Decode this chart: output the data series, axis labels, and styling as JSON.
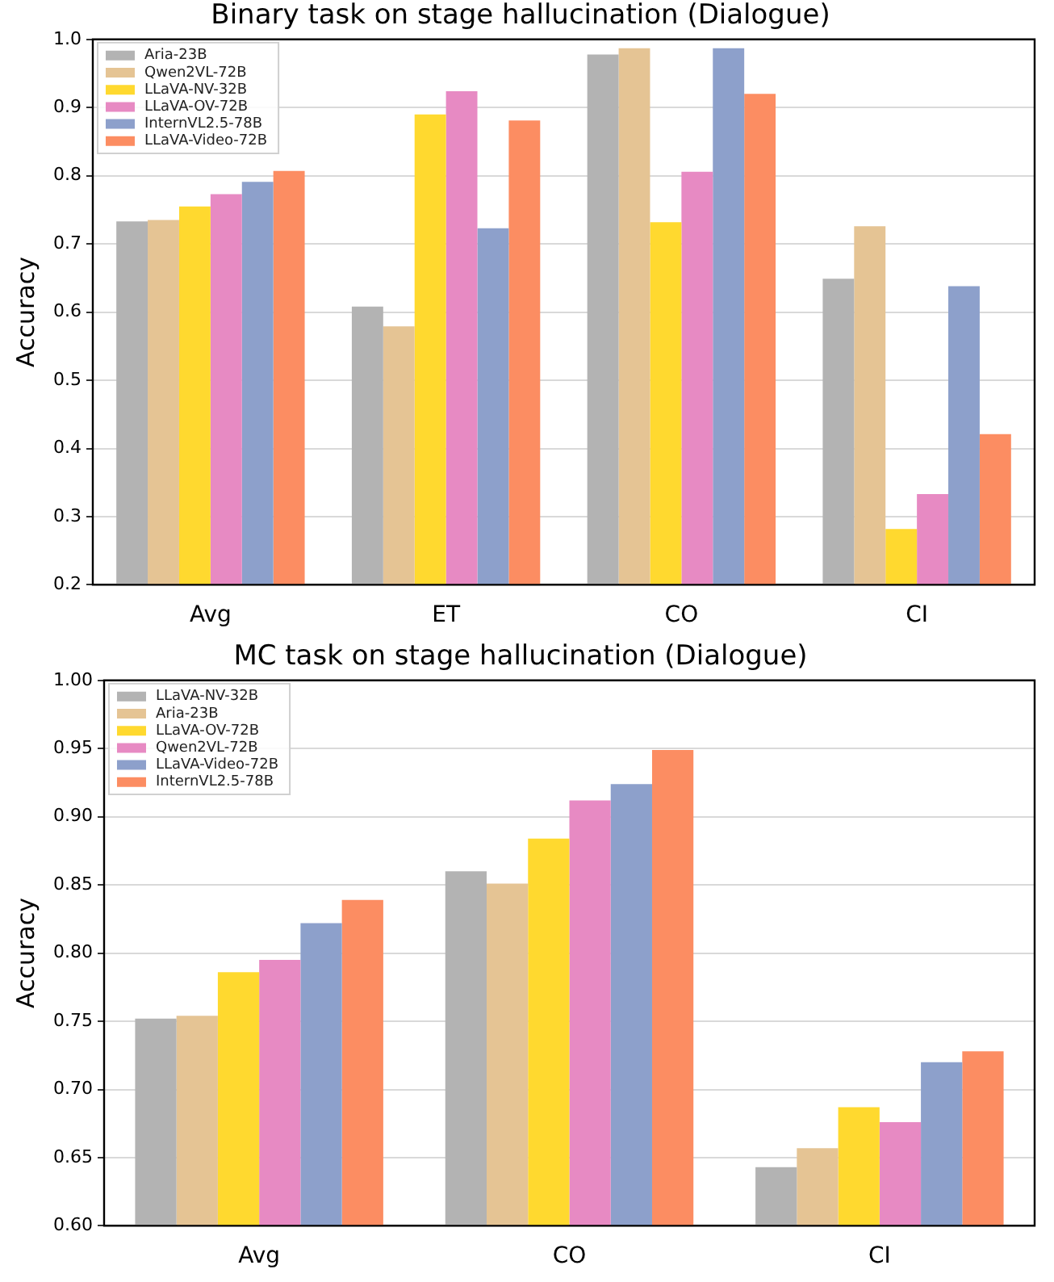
{
  "chart_data": [
    {
      "type": "bar",
      "title": "Binary task on stage hallucination (Dialogue)",
      "ylabel": "Accuracy",
      "categories": [
        "Avg",
        "ET",
        "CO",
        "CI"
      ],
      "series": [
        {
          "name": "Aria-23B",
          "color": "#b3b3b3",
          "values": [
            0.733,
            0.608,
            0.978,
            0.649
          ]
        },
        {
          "name": "Qwen2VL-72B",
          "color": "#e5c494",
          "values": [
            0.735,
            0.579,
            0.987,
            0.726
          ]
        },
        {
          "name": "LLaVA-NV-32B",
          "color": "#ffd92f",
          "values": [
            0.755,
            0.89,
            0.732,
            0.282
          ]
        },
        {
          "name": "LLaVA-OV-72B",
          "color": "#e78ac3",
          "values": [
            0.773,
            0.924,
            0.806,
            0.333
          ]
        },
        {
          "name": "InternVL2.5-78B",
          "color": "#8da0cb",
          "values": [
            0.791,
            0.723,
            0.987,
            0.638
          ]
        },
        {
          "name": "LLaVA-Video-72B",
          "color": "#fc8d62",
          "values": [
            0.807,
            0.881,
            0.92,
            0.421
          ]
        }
      ],
      "ylim": [
        0.2,
        1.0
      ],
      "yticks": [
        {
          "value": 0.2,
          "label": "0.2"
        },
        {
          "value": 0.3,
          "label": "0.3"
        },
        {
          "value": 0.4,
          "label": "0.4"
        },
        {
          "value": 0.5,
          "label": "0.5"
        },
        {
          "value": 0.6,
          "label": "0.6"
        },
        {
          "value": 0.7,
          "label": "0.7"
        },
        {
          "value": 0.8,
          "label": "0.8"
        },
        {
          "value": 0.9,
          "label": "0.9"
        },
        {
          "value": 1.0,
          "label": "1.0"
        }
      ],
      "grid": "y",
      "legend": "top left"
    },
    {
      "type": "bar",
      "title": "MC task on stage hallucination (Dialogue)",
      "ylabel": "Accuracy",
      "categories": [
        "Avg",
        "CO",
        "CI"
      ],
      "series": [
        {
          "name": "LLaVA-NV-32B",
          "color": "#b3b3b3",
          "values": [
            0.752,
            0.86,
            0.643
          ]
        },
        {
          "name": "Aria-23B",
          "color": "#e5c494",
          "values": [
            0.754,
            0.851,
            0.657
          ]
        },
        {
          "name": "LLaVA-OV-72B",
          "color": "#ffd92f",
          "values": [
            0.786,
            0.884,
            0.687
          ]
        },
        {
          "name": "Qwen2VL-72B",
          "color": "#e78ac3",
          "values": [
            0.795,
            0.912,
            0.676
          ]
        },
        {
          "name": "LLaVA-Video-72B",
          "color": "#8da0cb",
          "values": [
            0.822,
            0.924,
            0.72
          ]
        },
        {
          "name": "InternVL2.5-78B",
          "color": "#fc8d62",
          "values": [
            0.839,
            0.949,
            0.728
          ]
        }
      ],
      "ylim": [
        0.6,
        1.0
      ],
      "yticks": [
        {
          "value": 0.6,
          "label": "0.60"
        },
        {
          "value": 0.65,
          "label": "0.65"
        },
        {
          "value": 0.7,
          "label": "0.70"
        },
        {
          "value": 0.75,
          "label": "0.75"
        },
        {
          "value": 0.8,
          "label": "0.80"
        },
        {
          "value": 0.85,
          "label": "0.85"
        },
        {
          "value": 0.9,
          "label": "0.90"
        },
        {
          "value": 0.95,
          "label": "0.95"
        },
        {
          "value": 1.0,
          "label": "1.00"
        }
      ],
      "grid": "y",
      "legend": "top left"
    }
  ]
}
